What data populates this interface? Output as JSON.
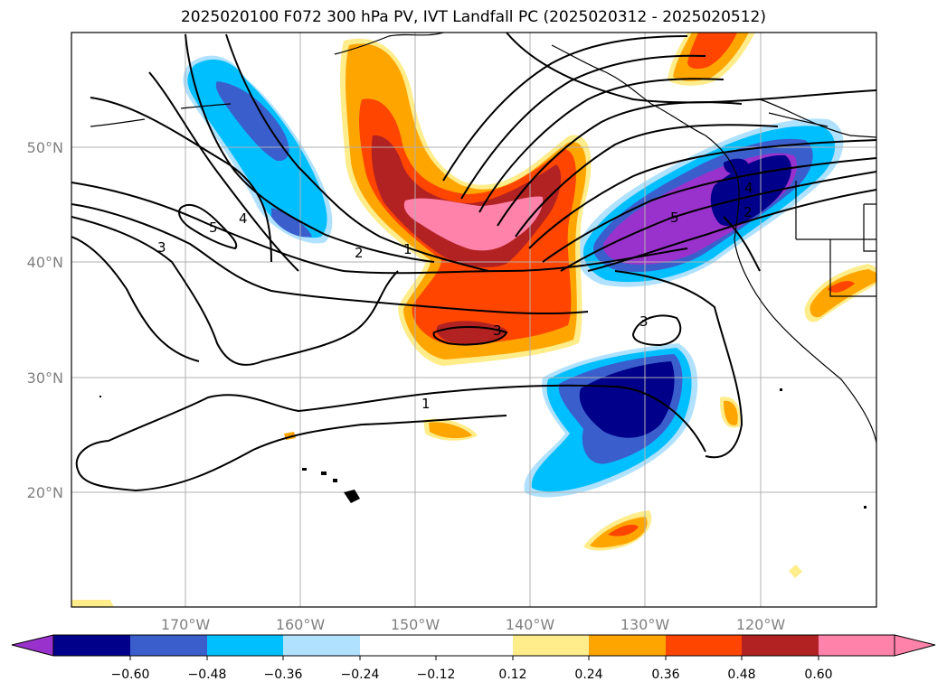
{
  "title": "2025020100 F072 300 hPa PV, IVT Landfall PC (2025020312 - 2025020512)",
  "map": {
    "lon_range": [
      -180,
      -110
    ],
    "lat_range": [
      10,
      60
    ],
    "gridlines": true,
    "lon_ticks": [
      "170°W",
      "160°W",
      "150°W",
      "140°W",
      "130°W",
      "120°W"
    ],
    "lat_ticks": [
      "50°N",
      "40°N",
      "30°N",
      "20°N"
    ],
    "contour_labels": [
      {
        "text": "5"
      },
      {
        "text": "4"
      },
      {
        "text": "3"
      },
      {
        "text": "2"
      },
      {
        "text": "1"
      },
      {
        "text": "3"
      },
      {
        "text": "3"
      },
      {
        "text": "1"
      },
      {
        "text": "5"
      },
      {
        "text": "4"
      },
      {
        "text": "2"
      }
    ]
  },
  "colorbar": {
    "extend": "both",
    "colors": [
      "#9932CC",
      "#00008B",
      "#3A5FCD",
      "#00BFFF",
      "#B0E2FF",
      "#FFFFFF",
      "#FFEC8B",
      "#FFA500",
      "#FF4500",
      "#B22222",
      "#FF82AB"
    ],
    "tick_labels": [
      "−0.60",
      "−0.48",
      "−0.36",
      "−0.24",
      "−0.12",
      "0.12",
      "0.24",
      "0.36",
      "0.48",
      "0.60"
    ]
  }
}
